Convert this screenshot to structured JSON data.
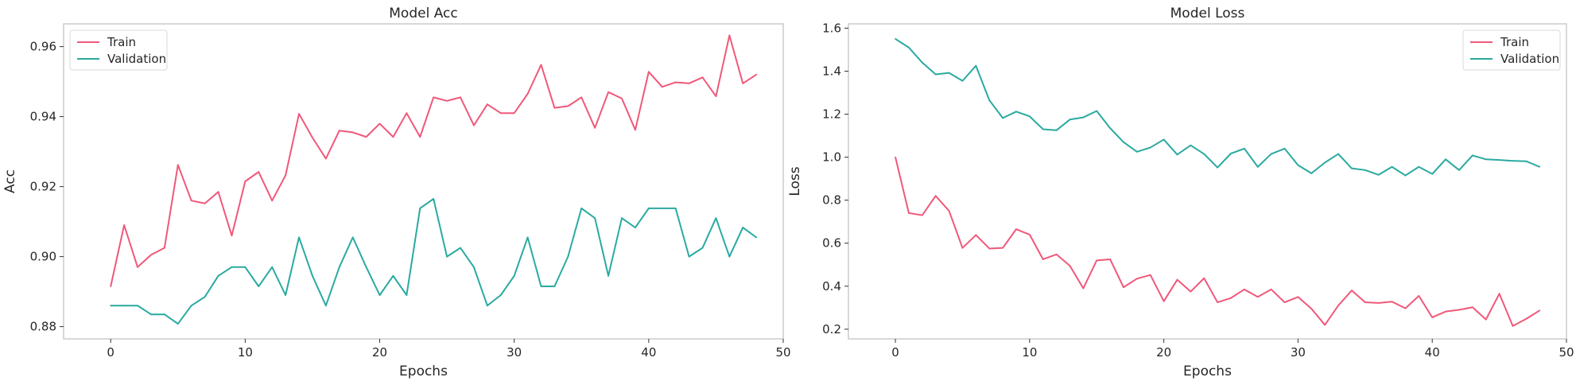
{
  "chart_data": [
    {
      "type": "line",
      "title": "Model Acc",
      "xlabel": "Epochs",
      "ylabel": "Acc",
      "xlim": [
        -3.5,
        50
      ],
      "ylim": [
        0.8765,
        0.9665
      ],
      "xticks": [
        0,
        10,
        20,
        30,
        40,
        50
      ],
      "yticks": [
        0.88,
        0.9,
        0.92,
        0.94,
        0.96
      ],
      "ytick_labels": [
        "0.88",
        "0.90",
        "0.92",
        "0.94",
        "0.96"
      ],
      "grid": false,
      "legend_position": "top-left",
      "series": [
        {
          "name": "Train",
          "color": "#f0587a",
          "values": [
            0.8915,
            0.909,
            0.897,
            0.9005,
            0.9025,
            0.9262,
            0.916,
            0.9152,
            0.9185,
            0.906,
            0.9215,
            0.9242,
            0.916,
            0.9232,
            0.9408,
            0.934,
            0.928,
            0.936,
            0.9355,
            0.9342,
            0.938,
            0.9342,
            0.941,
            0.9342,
            0.9455,
            0.9445,
            0.9455,
            0.9375,
            0.9435,
            0.941,
            0.941,
            0.9465,
            0.9548,
            0.9425,
            0.943,
            0.9455,
            0.9368,
            0.947,
            0.9452,
            0.9362,
            0.9528,
            0.9485,
            0.9498,
            0.9495,
            0.9512,
            0.9458,
            0.9632,
            0.9495,
            0.952
          ]
        },
        {
          "name": "Validation",
          "color": "#2aaaa0",
          "values": [
            0.886,
            0.886,
            0.886,
            0.8835,
            0.8835,
            0.8808,
            0.886,
            0.8885,
            0.8945,
            0.897,
            0.897,
            0.8915,
            0.897,
            0.889,
            0.9055,
            0.8945,
            0.886,
            0.897,
            0.9055,
            0.897,
            0.889,
            0.8945,
            0.889,
            0.9138,
            0.9165,
            0.9,
            0.9025,
            0.897,
            0.886,
            0.889,
            0.8945,
            0.9055,
            0.8915,
            0.8915,
            0.9,
            0.9138,
            0.911,
            0.8945,
            0.911,
            0.9083,
            0.9138,
            0.9138,
            0.9138,
            0.9,
            0.9025,
            0.911,
            0.9,
            0.9083,
            0.9055
          ]
        }
      ]
    },
    {
      "type": "line",
      "title": "Model Loss",
      "xlabel": "Epochs",
      "ylabel": "Loss",
      "xlim": [
        -3.5,
        50
      ],
      "ylim": [
        0.155,
        1.62
      ],
      "xticks": [
        0,
        10,
        20,
        30,
        40,
        50
      ],
      "yticks": [
        0.2,
        0.4,
        0.6,
        0.8,
        1.0,
        1.2,
        1.4,
        1.6
      ],
      "ytick_labels": [
        "0.2",
        "0.4",
        "0.6",
        "0.8",
        "1.0",
        "1.2",
        "1.4",
        "1.6"
      ],
      "grid": false,
      "legend_position": "top-right",
      "series": [
        {
          "name": "Train",
          "color": "#f0587a",
          "values": [
            1.0,
            0.74,
            0.73,
            0.82,
            0.75,
            0.578,
            0.638,
            0.575,
            0.578,
            0.665,
            0.64,
            0.525,
            0.548,
            0.495,
            0.39,
            0.52,
            0.525,
            0.395,
            0.435,
            0.452,
            0.33,
            0.43,
            0.375,
            0.437,
            0.325,
            0.345,
            0.385,
            0.35,
            0.385,
            0.325,
            0.35,
            0.295,
            0.22,
            0.31,
            0.38,
            0.325,
            0.322,
            0.328,
            0.297,
            0.355,
            0.255,
            0.282,
            0.29,
            0.302,
            0.245,
            0.365,
            0.215,
            0.248,
            0.287
          ]
        },
        {
          "name": "Validation",
          "color": "#2aaaa0",
          "values": [
            1.55,
            1.51,
            1.44,
            1.385,
            1.392,
            1.355,
            1.425,
            1.265,
            1.182,
            1.212,
            1.19,
            1.13,
            1.125,
            1.175,
            1.185,
            1.215,
            1.135,
            1.07,
            1.025,
            1.045,
            1.082,
            1.012,
            1.055,
            1.015,
            0.952,
            1.017,
            1.04,
            0.955,
            1.015,
            1.04,
            0.963,
            0.925,
            0.975,
            1.015,
            0.948,
            0.94,
            0.918,
            0.955,
            0.915,
            0.955,
            0.922,
            0.99,
            0.94,
            1.008,
            0.99,
            0.987,
            0.983,
            0.981,
            0.955
          ]
        }
      ]
    }
  ]
}
